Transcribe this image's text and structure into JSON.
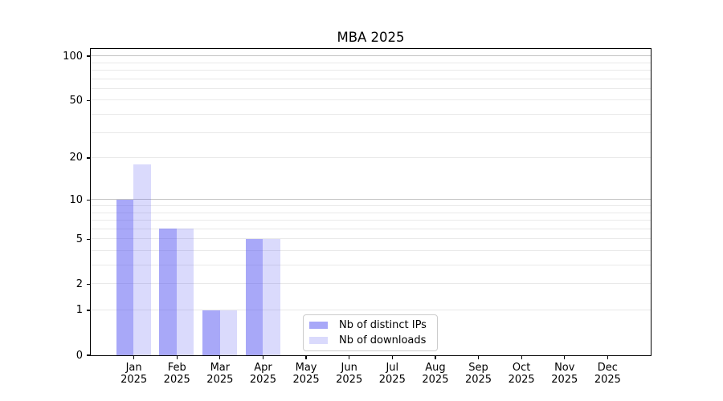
{
  "chart_data": {
    "type": "bar",
    "title": "MBA 2025",
    "categories": [
      "Jan 2025",
      "Feb 2025",
      "Mar 2025",
      "Apr 2025",
      "May 2025",
      "Jun 2025",
      "Jul 2025",
      "Aug 2025",
      "Sep 2025",
      "Oct 2025",
      "Nov 2025",
      "Dec 2025"
    ],
    "series": [
      {
        "name": "Nb of distinct IPs",
        "color": "#5252f2",
        "alpha": 0.5,
        "values": [
          10,
          6,
          1,
          5,
          0,
          0,
          0,
          0,
          0,
          0,
          0,
          0
        ]
      },
      {
        "name": "Nb of downloads",
        "color": "#5252f2",
        "alpha": 0.21,
        "values": [
          18,
          6,
          1,
          5,
          0,
          0,
          0,
          0,
          0,
          0,
          0,
          0
        ]
      }
    ],
    "yscale": "log1p",
    "ylim": [
      0,
      112
    ],
    "yticks": [
      0,
      1,
      2,
      5,
      10,
      20,
      50,
      100
    ],
    "grid": {
      "minor_values": [
        1,
        2,
        3,
        4,
        5,
        6,
        7,
        8,
        9,
        20,
        30,
        40,
        50,
        60,
        70,
        80,
        90
      ],
      "major_values": [
        10,
        100
      ],
      "minor_color": "#e9e9e9",
      "major_color": "#c3c3c3"
    },
    "legend_position": "lower center"
  }
}
